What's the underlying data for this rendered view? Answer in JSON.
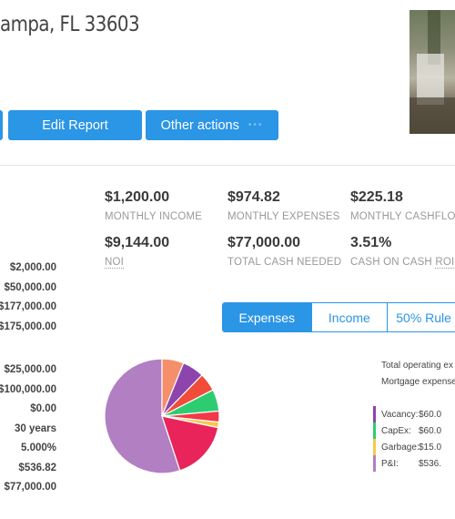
{
  "header": {
    "address": "ampa, FL 33603"
  },
  "actions": {
    "edit_report": "Edit Report",
    "other_actions": "Other actions",
    "other_actions_dots": "•••"
  },
  "metrics": [
    {
      "value": "$1,200.00",
      "label": "MONTHLY INCOME"
    },
    {
      "value": "$974.82",
      "label": "MONTHLY EXPENSES"
    },
    {
      "value": "$225.18",
      "label": "MONTHLY CASHFLOW"
    },
    {
      "value": "$9,144.00",
      "label": "NOI"
    },
    {
      "value": "$77,000.00",
      "label": "TOTAL CASH NEEDED"
    },
    {
      "value": "3.51%",
      "label_prefix": "CASH ON CASH ",
      "label_abbr": "ROI"
    }
  ],
  "purchase_values": [
    "$2,000.00",
    "$50,000.00",
    "$177,000.00",
    "$175,000.00"
  ],
  "loan_values": [
    "$25,000.00",
    "$100,000.00",
    "$0.00",
    "30 years",
    "5.000%",
    "$536.82",
    "$77,000.00"
  ],
  "tabs": [
    {
      "label": "Expenses",
      "active": true
    },
    {
      "label": "Income",
      "active": false
    },
    {
      "label": "50% Rule",
      "active": false
    }
  ],
  "expense_summary": {
    "total_operating": "Total operating ex",
    "mortgage": "Mortgage expense"
  },
  "chart_data": {
    "type": "pie",
    "slices": [
      {
        "label": "P&I",
        "value": 536.82,
        "color": "#b27fc2"
      },
      {
        "label": "",
        "value": 60.0,
        "color": "#f58f6b"
      },
      {
        "label": "Vacancy",
        "value": 60.0,
        "color": "#8e44ad"
      },
      {
        "label": "",
        "value": 50.0,
        "color": "#f14b3a"
      },
      {
        "label": "CapEx",
        "value": 60.0,
        "color": "#2ecc71"
      },
      {
        "label": "",
        "value": 30.0,
        "color": "#f3384a"
      },
      {
        "label": "Garbage",
        "value": 15.0,
        "color": "#f7c948"
      },
      {
        "label": "",
        "value": 163.0,
        "color": "#e8245a"
      }
    ]
  },
  "legend": [
    {
      "name": "Vacancy:",
      "amount": "$60.0",
      "color": "#8e44ad"
    },
    {
      "name": "CapEx:",
      "amount": "$60.0",
      "color": "#2ecc71"
    },
    {
      "name": "Garbage:",
      "amount": "$15.0",
      "color": "#f7c948"
    },
    {
      "name": "P&I:",
      "amount": "$536.",
      "color": "#b27fc2"
    }
  ]
}
